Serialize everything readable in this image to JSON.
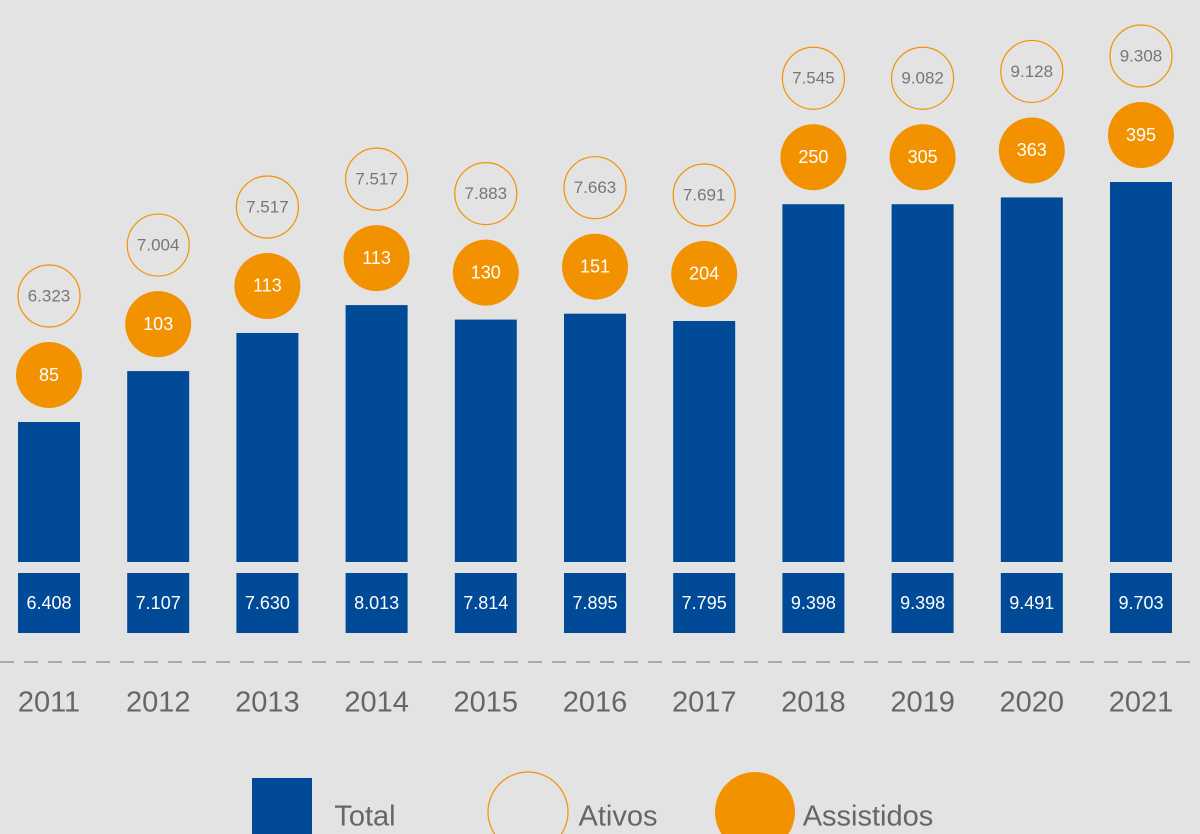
{
  "chart_data": {
    "type": "bar",
    "categories": [
      "2011",
      "2012",
      "2013",
      "2014",
      "2015",
      "2016",
      "2017",
      "2018",
      "2019",
      "2020",
      "2021"
    ],
    "series": [
      {
        "name": "Total",
        "color": "#004a98",
        "values": [
          6408,
          7107,
          7630,
          8013,
          7814,
          7895,
          7795,
          9398,
          9398,
          9491,
          9703
        ],
        "value_labels": [
          "6.408",
          "7.107",
          "7.630",
          "8.013",
          "7.814",
          "7.895",
          "7.795",
          "9.398",
          "9.398",
          "9.491",
          "9.703"
        ]
      },
      {
        "name": "Ativos",
        "color": "#f39200",
        "values": [
          6323,
          7004,
          7517,
          7517,
          7883,
          7663,
          7691,
          7545,
          9082,
          9128,
          9308
        ],
        "value_labels": [
          "6.323",
          "7.004",
          "7.517",
          "7.517",
          "7.883",
          "7.663",
          "7.691",
          "7.545",
          "9.082",
          "9.128",
          "9.308"
        ]
      },
      {
        "name": "Assistidos",
        "color": "#f39200",
        "values": [
          85,
          103,
          113,
          113,
          130,
          151,
          204,
          250,
          305,
          363,
          395
        ]
      }
    ]
  }
}
